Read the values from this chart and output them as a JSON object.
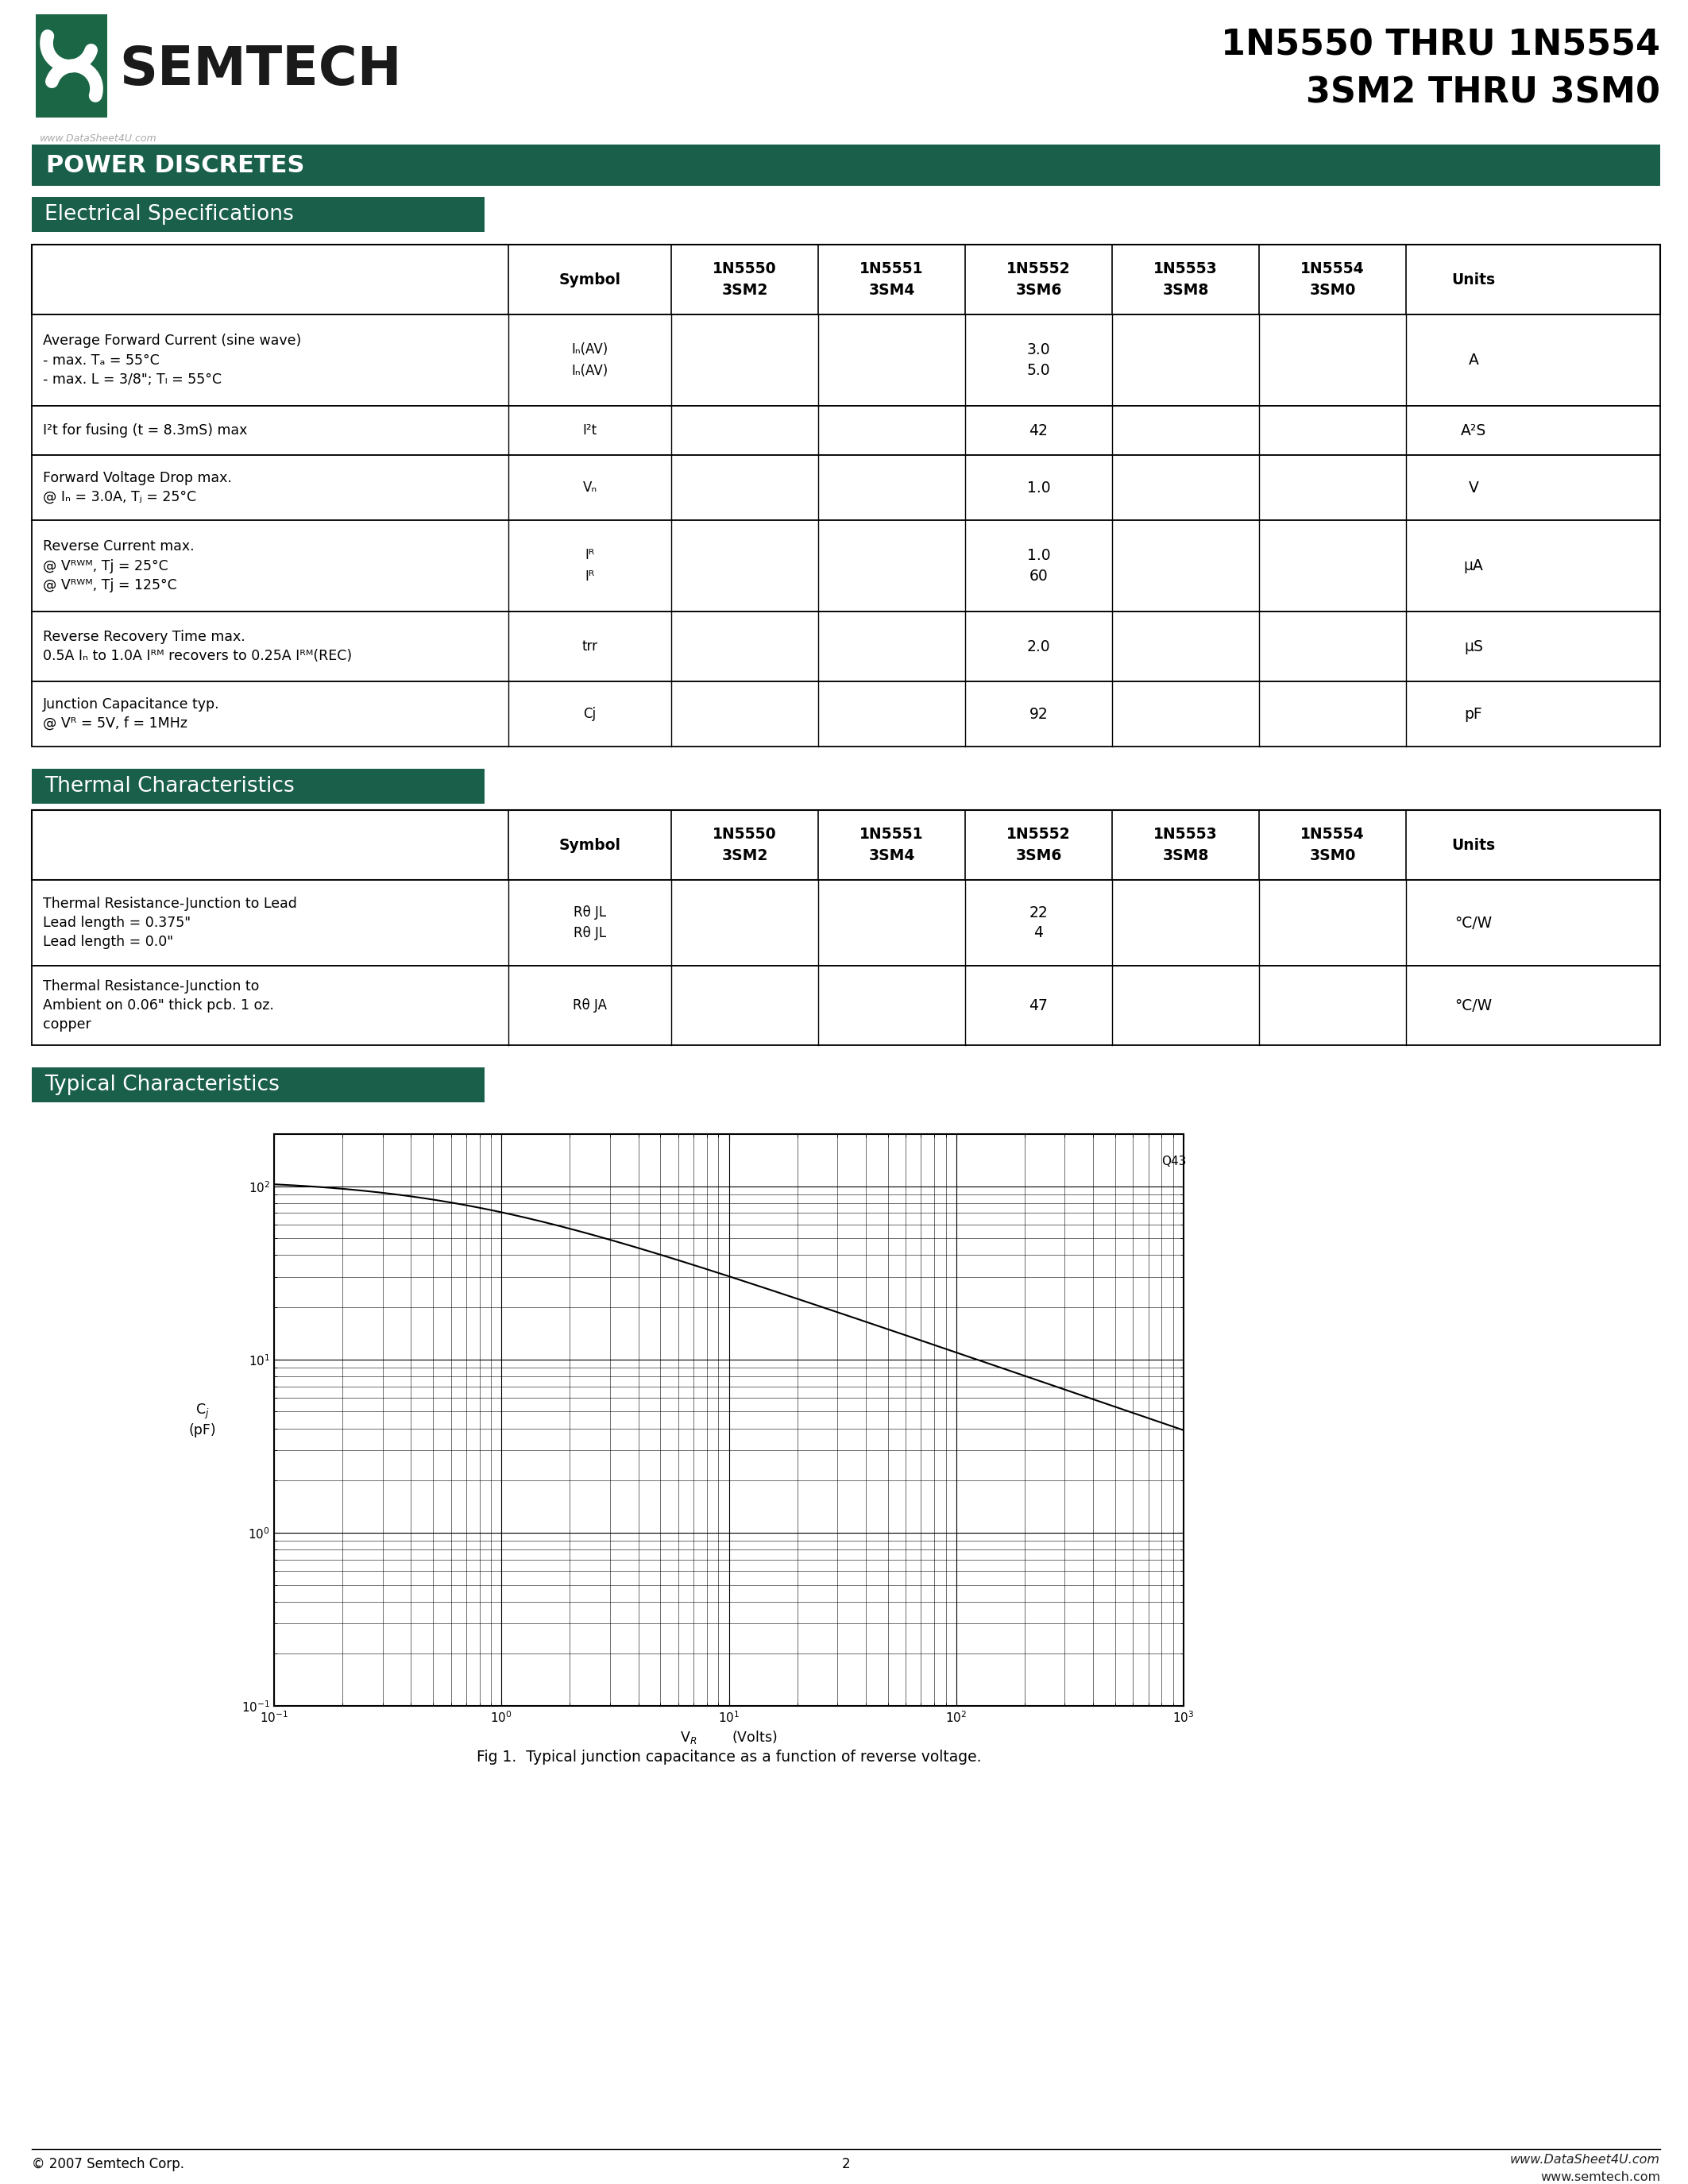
{
  "title_line1": "1N5550 THRU 1N5554",
  "title_line2": "3SM2 THRU 3SM0",
  "section1_title": "POWER DISCRETES",
  "section2_title": "Electrical Specifications",
  "section3_title": "Thermal Characteristics",
  "section4_title": "Typical Characteristics",
  "header_bg": "#1a5f4a",
  "fig_caption": "Fig 1.  Typical junction capacitance as a function of reverse voltage.",
  "footer_left": "© 2007 Semtech Corp.",
  "footer_center": "2",
  "footer_right_top": "www.DataSheet4U.com",
  "footer_right_bot": "www.semtech.com",
  "watermark": "www.DataSheet4U.com"
}
